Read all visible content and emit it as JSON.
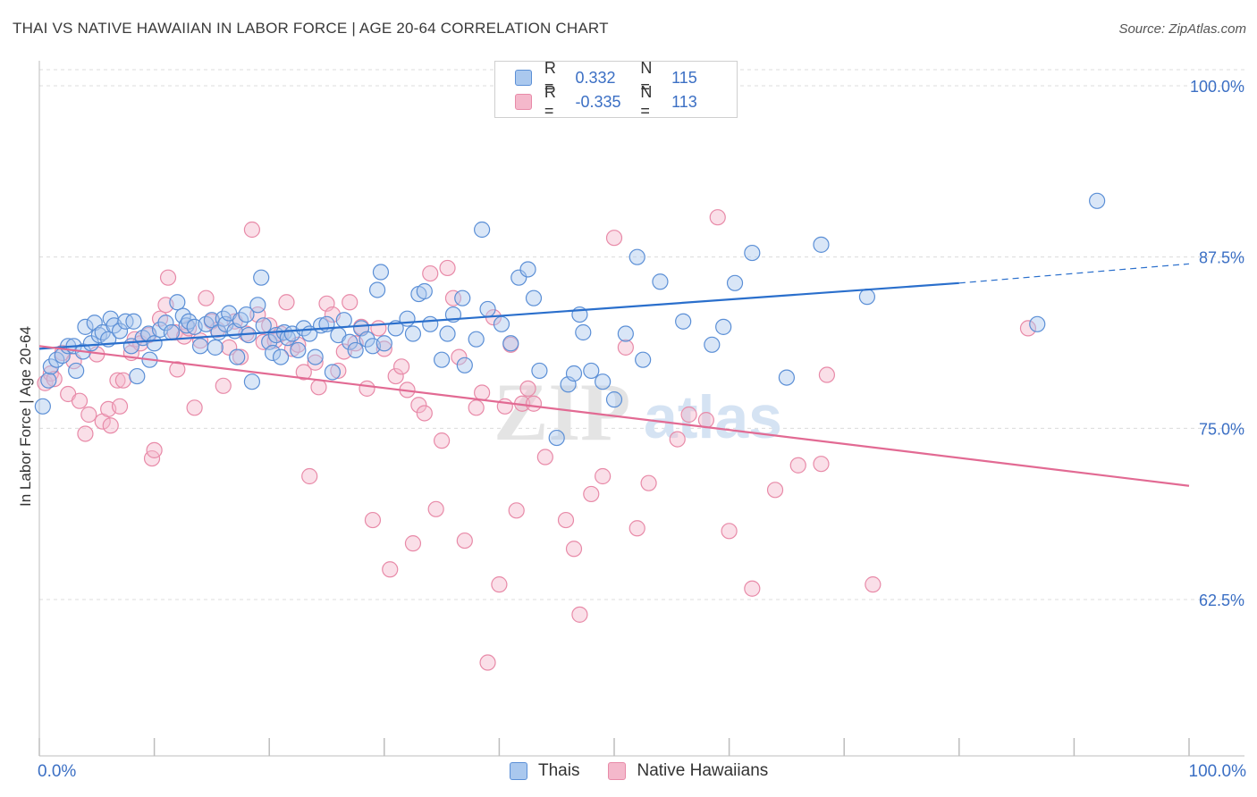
{
  "title": "THAI VS NATIVE HAWAIIAN IN LABOR FORCE | AGE 20-64 CORRELATION CHART",
  "source": "Source: ZipAtlas.com",
  "watermark": {
    "zip": "ZIP",
    "atlas": "atlas"
  },
  "legend": {
    "r_label": "R =",
    "n_label": "N =",
    "rows": [
      {
        "r": "0.332",
        "n": "115"
      },
      {
        "r": "-0.335",
        "n": "113"
      }
    ]
  },
  "colors": {
    "thai_fill": "#aac8ee",
    "thai_stroke": "#5b8fd6",
    "thai_line": "#2a6fcc",
    "hawaiian_fill": "#f4b8cb",
    "hawaiian_stroke": "#e88aa8",
    "hawaiian_line": "#e26a93",
    "tick_label": "#3b6fc4",
    "grid": "#dcdcdc"
  },
  "chart_data": {
    "type": "scatter",
    "title": "THAI VS NATIVE HAWAIIAN IN LABOR FORCE | AGE 20-64 CORRELATION CHART",
    "xlabel": "",
    "ylabel": "In Labor Force | Age 20-64",
    "xlim": [
      0,
      100
    ],
    "ylim": [
      52.5,
      106
    ],
    "x_tick_labels": [
      {
        "value": 0,
        "label": "0.0%"
      },
      {
        "value": 100,
        "label": "100.0%"
      }
    ],
    "y_ticks": [
      {
        "value": 100,
        "label": "100.0%"
      },
      {
        "value": 87.5,
        "label": "87.5%"
      },
      {
        "value": 75,
        "label": "75.0%"
      },
      {
        "value": 62.5,
        "label": "62.5%"
      }
    ],
    "grid": true,
    "legend_position": "top-center",
    "series": [
      {
        "name": "Thais",
        "trend": {
          "x0": 0,
          "y0": 80.8,
          "x1": 80,
          "y1": 85.6,
          "dashed_to_x": 100,
          "dashed_to_y": 87.0
        },
        "points": [
          [
            0.3,
            76.6
          ],
          [
            0.8,
            78.5
          ],
          [
            1,
            79.5
          ],
          [
            1.5,
            80
          ],
          [
            2,
            80.3
          ],
          [
            2.5,
            81
          ],
          [
            3,
            81
          ],
          [
            3.2,
            79.2
          ],
          [
            3.8,
            80.6
          ],
          [
            4,
            82.4
          ],
          [
            4.5,
            81.2
          ],
          [
            4.8,
            82.7
          ],
          [
            5.2,
            81.8
          ],
          [
            5.5,
            82
          ],
          [
            6,
            81.5
          ],
          [
            6.2,
            83
          ],
          [
            6.5,
            82.5
          ],
          [
            7,
            82.1
          ],
          [
            7.5,
            82.8
          ],
          [
            8,
            81
          ],
          [
            8.2,
            82.8
          ],
          [
            8.5,
            78.8
          ],
          [
            9,
            81.6
          ],
          [
            9.5,
            81.9
          ],
          [
            9.6,
            80
          ],
          [
            10,
            81.2
          ],
          [
            10.5,
            82.2
          ],
          [
            11,
            82.7
          ],
          [
            11.5,
            82
          ],
          [
            12,
            84.2
          ],
          [
            12.5,
            83.2
          ],
          [
            12.8,
            82.5
          ],
          [
            13,
            82.8
          ],
          [
            13.5,
            82.4
          ],
          [
            14,
            81
          ],
          [
            14.5,
            82.6
          ],
          [
            15,
            82.9
          ],
          [
            15.3,
            80.9
          ],
          [
            15.6,
            82
          ],
          [
            16,
            83
          ],
          [
            16.2,
            82.6
          ],
          [
            16.5,
            83.4
          ],
          [
            17,
            82.1
          ],
          [
            17.2,
            80.2
          ],
          [
            17.5,
            82.9
          ],
          [
            18,
            83.3
          ],
          [
            18.2,
            81.8
          ],
          [
            18.5,
            78.4
          ],
          [
            19,
            84
          ],
          [
            19.3,
            86
          ],
          [
            19.5,
            82.5
          ],
          [
            20,
            81.3
          ],
          [
            20.3,
            80.5
          ],
          [
            20.6,
            81.8
          ],
          [
            21,
            80.2
          ],
          [
            21.3,
            82
          ],
          [
            21.6,
            81.6
          ],
          [
            22,
            81.9
          ],
          [
            22.5,
            80.7
          ],
          [
            23,
            82.3
          ],
          [
            23.5,
            81.9
          ],
          [
            24,
            80.2
          ],
          [
            24.5,
            82.5
          ],
          [
            25,
            82.6
          ],
          [
            25.5,
            79.1
          ],
          [
            26,
            81.8
          ],
          [
            26.5,
            82.9
          ],
          [
            27,
            81.3
          ],
          [
            27.5,
            80.7
          ],
          [
            28,
            82.3
          ],
          [
            28.5,
            81.5
          ],
          [
            29,
            81
          ],
          [
            29.4,
            85.1
          ],
          [
            29.7,
            86.4
          ],
          [
            30,
            81.2
          ],
          [
            31,
            82.3
          ],
          [
            32,
            83
          ],
          [
            32.5,
            81.9
          ],
          [
            33,
            84.8
          ],
          [
            33.5,
            85
          ],
          [
            34,
            82.6
          ],
          [
            35,
            80
          ],
          [
            35.5,
            81.9
          ],
          [
            36,
            83.3
          ],
          [
            36.8,
            84.5
          ],
          [
            37,
            79.6
          ],
          [
            38,
            81.5
          ],
          [
            38.5,
            89.5
          ],
          [
            39,
            83.7
          ],
          [
            40.2,
            82.6
          ],
          [
            41,
            81.2
          ],
          [
            41.7,
            86
          ],
          [
            42.5,
            86.6
          ],
          [
            43,
            84.5
          ],
          [
            43.5,
            79.2
          ],
          [
            45,
            74.3
          ],
          [
            46,
            78.2
          ],
          [
            46.5,
            79
          ],
          [
            47,
            83.3
          ],
          [
            47.3,
            82
          ],
          [
            48,
            79.2
          ],
          [
            49,
            78.4
          ],
          [
            50,
            77.1
          ],
          [
            51,
            81.9
          ],
          [
            52,
            87.5
          ],
          [
            52.5,
            80
          ],
          [
            54,
            85.7
          ],
          [
            56,
            82.8
          ],
          [
            58.5,
            81.1
          ],
          [
            59.5,
            82.4
          ],
          [
            60.5,
            85.6
          ],
          [
            62,
            87.8
          ],
          [
            65,
            78.7
          ],
          [
            68,
            88.4
          ],
          [
            72,
            84.6
          ],
          [
            86.8,
            82.6
          ],
          [
            92,
            91.6
          ]
        ]
      },
      {
        "name": "Native Hawaiians",
        "trend": {
          "x0": 0,
          "y0": 81.0,
          "x1": 100,
          "y1": 70.8
        },
        "points": [
          [
            0.5,
            78.3
          ],
          [
            1,
            79
          ],
          [
            1.3,
            78.6
          ],
          [
            2,
            80.5
          ],
          [
            2.5,
            77.5
          ],
          [
            3,
            79.9
          ],
          [
            3.5,
            77
          ],
          [
            4,
            74.6
          ],
          [
            4.3,
            76
          ],
          [
            5,
            80.4
          ],
          [
            5.5,
            75.5
          ],
          [
            6,
            76.4
          ],
          [
            6.2,
            75.2
          ],
          [
            6.8,
            78.5
          ],
          [
            7,
            76.6
          ],
          [
            7.3,
            78.5
          ],
          [
            8,
            80.5
          ],
          [
            8.3,
            81.5
          ],
          [
            8.8,
            81.2
          ],
          [
            9.5,
            81.8
          ],
          [
            9.8,
            72.8
          ],
          [
            10,
            73.4
          ],
          [
            10.5,
            83
          ],
          [
            11,
            84
          ],
          [
            11.2,
            86
          ],
          [
            11.8,
            82
          ],
          [
            12,
            79.3
          ],
          [
            12.6,
            81.7
          ],
          [
            13,
            82.3
          ],
          [
            13.5,
            76.5
          ],
          [
            14,
            81.4
          ],
          [
            14.5,
            84.5
          ],
          [
            15,
            82.8
          ],
          [
            15.5,
            82.2
          ],
          [
            16,
            78.1
          ],
          [
            16.5,
            80.9
          ],
          [
            17,
            82.8
          ],
          [
            17.5,
            80.2
          ],
          [
            18,
            81.9
          ],
          [
            18.5,
            89.5
          ],
          [
            19,
            83.3
          ],
          [
            19.5,
            81.3
          ],
          [
            20,
            82.5
          ],
          [
            20.5,
            81.4
          ],
          [
            21,
            81.9
          ],
          [
            21.5,
            84.2
          ],
          [
            22,
            80.8
          ],
          [
            22.5,
            81.1
          ],
          [
            23,
            79.1
          ],
          [
            23.5,
            71.5
          ],
          [
            24,
            79.8
          ],
          [
            24.3,
            78
          ],
          [
            25,
            84.1
          ],
          [
            25.5,
            83.3
          ],
          [
            26,
            79.2
          ],
          [
            26.5,
            80.6
          ],
          [
            27,
            84.2
          ],
          [
            27.5,
            81.2
          ],
          [
            28,
            82.4
          ],
          [
            28.5,
            77.9
          ],
          [
            29,
            68.3
          ],
          [
            29.5,
            82.3
          ],
          [
            30,
            80.8
          ],
          [
            30.5,
            64.7
          ],
          [
            31,
            78.8
          ],
          [
            31.5,
            79.5
          ],
          [
            32,
            77.8
          ],
          [
            32.5,
            66.6
          ],
          [
            33,
            76.7
          ],
          [
            33.5,
            76.1
          ],
          [
            34,
            86.3
          ],
          [
            34.5,
            69.1
          ],
          [
            35,
            74.1
          ],
          [
            35.5,
            86.7
          ],
          [
            36,
            84.5
          ],
          [
            36.5,
            80.2
          ],
          [
            37,
            66.8
          ],
          [
            38,
            76.5
          ],
          [
            38.5,
            77.6
          ],
          [
            39,
            57.9
          ],
          [
            39.5,
            83.1
          ],
          [
            40,
            63.6
          ],
          [
            40.5,
            76.6
          ],
          [
            41,
            81.1
          ],
          [
            41.5,
            69
          ],
          [
            42,
            76.8
          ],
          [
            42.5,
            77.9
          ],
          [
            43,
            76.8
          ],
          [
            44,
            72.9
          ],
          [
            45.8,
            68.3
          ],
          [
            46.5,
            66.2
          ],
          [
            47,
            61.4
          ],
          [
            48,
            70.2
          ],
          [
            49,
            71.5
          ],
          [
            50,
            88.9
          ],
          [
            51,
            80.9
          ],
          [
            52,
            67.7
          ],
          [
            53,
            71
          ],
          [
            55.5,
            74.2
          ],
          [
            56.5,
            76
          ],
          [
            58,
            75.6
          ],
          [
            59,
            90.4
          ],
          [
            60,
            67.5
          ],
          [
            62,
            63.3
          ],
          [
            64,
            70.5
          ],
          [
            66,
            72.3
          ],
          [
            68,
            72.4
          ],
          [
            68.5,
            78.9
          ],
          [
            72.5,
            63.6
          ],
          [
            86,
            82.3
          ]
        ]
      }
    ]
  },
  "axis": {
    "ylabel": "In Labor Force | Age 20-64",
    "x_left": "0.0%",
    "x_right": "100.0%"
  },
  "bottom_legend": [
    "Thais",
    "Native Hawaiians"
  ]
}
